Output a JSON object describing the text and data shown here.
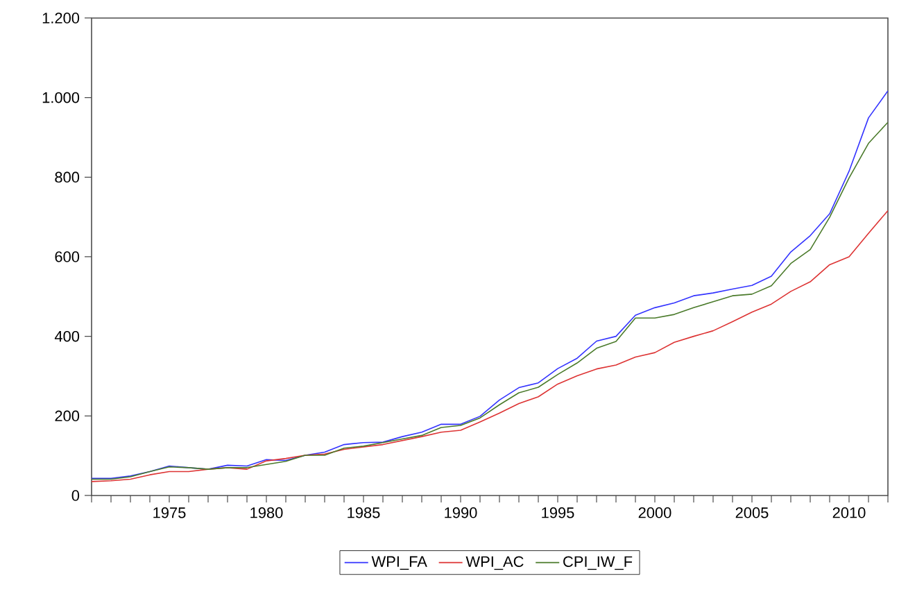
{
  "chart_data": {
    "type": "line",
    "x": [
      1971,
      1972,
      1973,
      1974,
      1975,
      1976,
      1977,
      1978,
      1979,
      1980,
      1981,
      1982,
      1983,
      1984,
      1985,
      1986,
      1987,
      1988,
      1989,
      1990,
      1991,
      1992,
      1993,
      1994,
      1995,
      1996,
      1997,
      1998,
      1999,
      2000,
      2001,
      2002,
      2003,
      2004,
      2005,
      2006,
      2007,
      2008,
      2009,
      2010,
      2011,
      2012
    ],
    "series": [
      {
        "name": "WPI_FA",
        "color": "#3333ff",
        "values": [
          43,
          43,
          49,
          60,
          74,
          70,
          66,
          76,
          74,
          90,
          88,
          101,
          109,
          128,
          133,
          134,
          148,
          159,
          179,
          179,
          199,
          240,
          271,
          283,
          319,
          345,
          388,
          400,
          453,
          472,
          484,
          502,
          509,
          519,
          528,
          551,
          612,
          653,
          708,
          815,
          949,
          1017
        ]
      },
      {
        "name": "WPI_AC",
        "color": "#dd3333",
        "values": [
          35,
          37,
          41,
          52,
          60,
          60,
          66,
          70,
          66,
          87,
          93,
          101,
          104,
          116,
          122,
          128,
          138,
          148,
          159,
          164,
          185,
          207,
          231,
          248,
          280,
          301,
          318,
          328,
          348,
          359,
          385,
          400,
          414,
          437,
          461,
          481,
          513,
          537,
          580,
          600,
          659,
          716
        ]
      },
      {
        "name": "CPI_IW_F",
        "color": "#4a7a2a",
        "values": [
          41,
          41,
          47,
          60,
          72,
          70,
          66,
          70,
          70,
          78,
          86,
          101,
          101,
          119,
          124,
          133,
          142,
          151,
          171,
          176,
          195,
          228,
          258,
          272,
          304,
          333,
          370,
          387,
          446,
          446,
          455,
          472,
          487,
          502,
          506,
          527,
          583,
          618,
          699,
          798,
          885,
          938
        ]
      }
    ],
    "xlim": [
      1971,
      2012
    ],
    "xticks": [
      {
        "value": 1971,
        "label": null
      },
      {
        "value": 1972,
        "label": null
      },
      {
        "value": 1973,
        "label": null
      },
      {
        "value": 1974,
        "label": null
      },
      1975,
      {
        "value": 1976,
        "label": null
      },
      {
        "value": 1977,
        "label": null
      },
      {
        "value": 1978,
        "label": null
      },
      {
        "value": 1979,
        "label": null
      },
      1980,
      {
        "value": 1981,
        "label": null
      },
      {
        "value": 1982,
        "label": null
      },
      {
        "value": 1983,
        "label": null
      },
      {
        "value": 1984,
        "label": null
      },
      1985,
      {
        "value": 1986,
        "label": null
      },
      {
        "value": 1987,
        "label": null
      },
      {
        "value": 1988,
        "label": null
      },
      {
        "value": 1989,
        "label": null
      },
      1990,
      {
        "value": 1991,
        "label": null
      },
      {
        "value": 1992,
        "label": null
      },
      {
        "value": 1993,
        "label": null
      },
      {
        "value": 1994,
        "label": null
      },
      1995,
      {
        "value": 1996,
        "label": null
      },
      {
        "value": 1997,
        "label": null
      },
      {
        "value": 1998,
        "label": null
      },
      {
        "value": 1999,
        "label": null
      },
      2000,
      {
        "value": 2001,
        "label": null
      },
      {
        "value": 2002,
        "label": null
      },
      {
        "value": 2003,
        "label": null
      },
      {
        "value": 2004,
        "label": null
      },
      2005,
      {
        "value": 2006,
        "label": null
      },
      {
        "value": 2007,
        "label": null
      },
      {
        "value": 2008,
        "label": null
      },
      {
        "value": 2009,
        "label": null
      },
      2010,
      {
        "value": 2011,
        "label": null
      },
      {
        "value": 2012,
        "label": null
      }
    ],
    "ylim": [
      0,
      1200
    ],
    "yticks": [
      0,
      200,
      400,
      600,
      800,
      {
        "value": 1000,
        "label": "1.000"
      },
      {
        "value": 1200,
        "label": "1.200"
      }
    ],
    "legend": "bottom"
  }
}
